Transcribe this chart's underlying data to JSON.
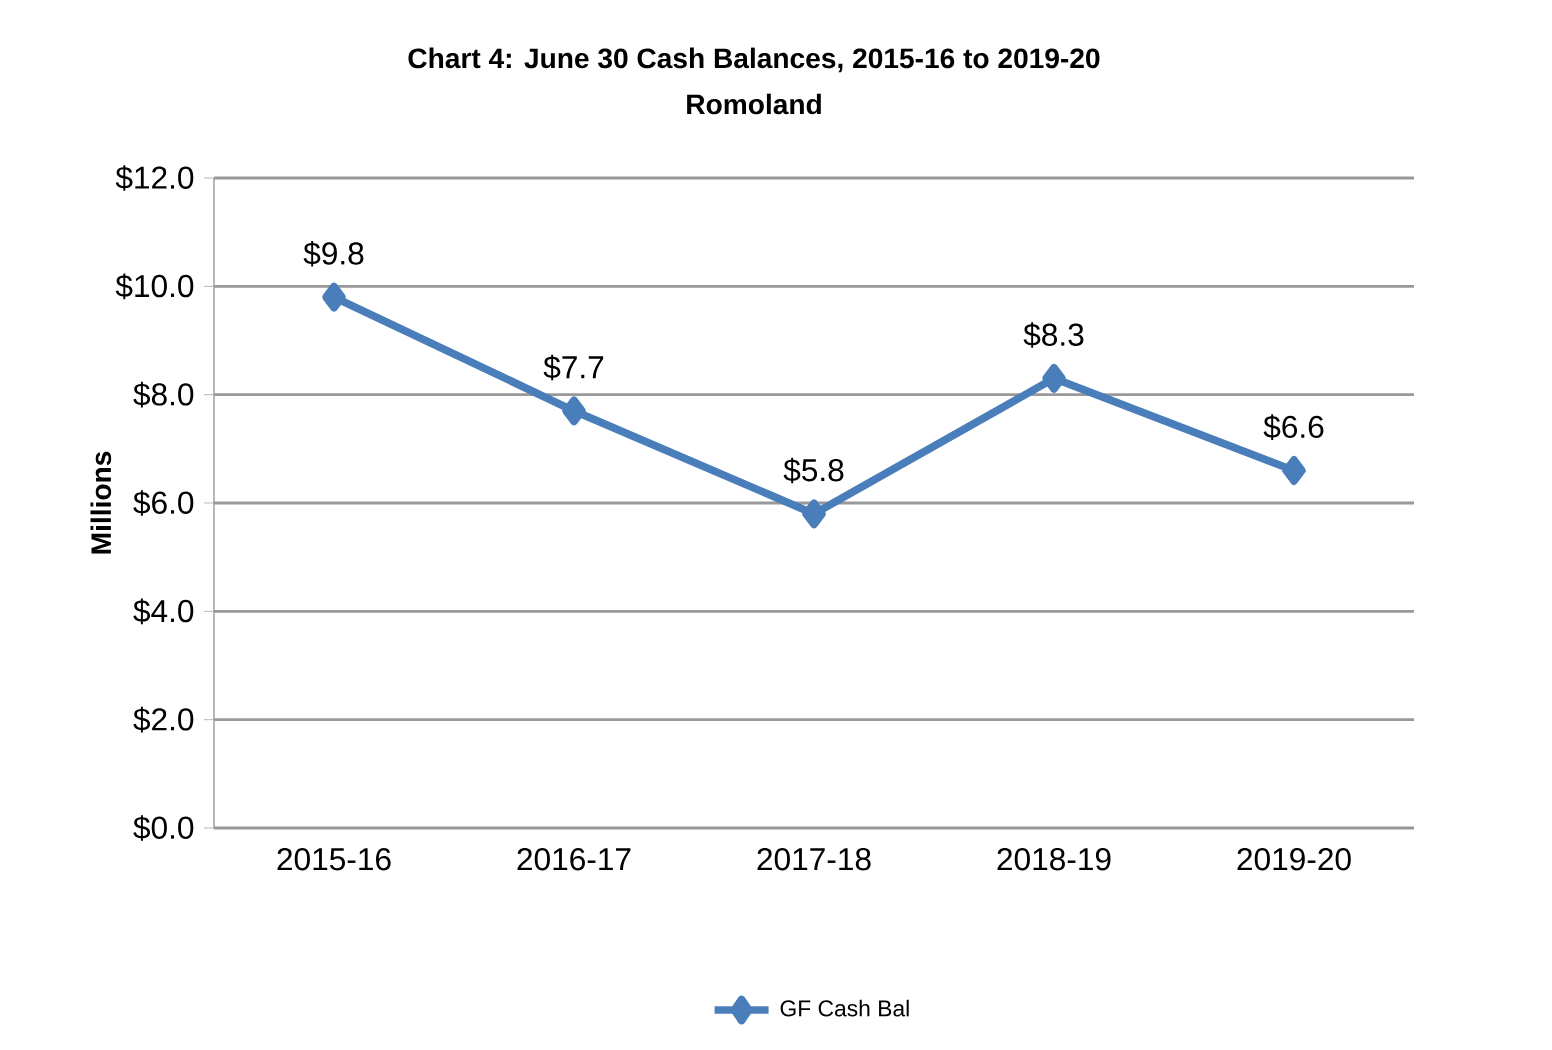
{
  "chart_data": {
    "type": "line",
    "title": "Chart 4: June 30 Cash Balances, 2015-16 to 2019-20",
    "subtitle": "Romoland",
    "ylabel": "Millions",
    "categories": [
      "2015-16",
      "2016-17",
      "2017-18",
      "2018-19",
      "2019-20"
    ],
    "series": [
      {
        "name": "GF Cash Bal",
        "color": "#4a7ebb",
        "values": [
          9.8,
          7.7,
          5.8,
          8.3,
          6.6
        ],
        "value_labels": [
          "$9.8",
          "$7.7",
          "$5.8",
          "$8.3",
          "$6.6"
        ]
      }
    ],
    "ylim": [
      0,
      12
    ],
    "yticks": [
      {
        "value": 0,
        "label": "$0.0"
      },
      {
        "value": 2,
        "label": "$2.0"
      },
      {
        "value": 4,
        "label": "$4.0"
      },
      {
        "value": 6,
        "label": "$6.0"
      },
      {
        "value": 8,
        "label": "$8.0"
      },
      {
        "value": 10,
        "label": "$10.0"
      },
      {
        "value": 12,
        "label": "$12.0"
      }
    ],
    "grid": "y",
    "legend": "bottom",
    "marker": "diamond",
    "line_style": "solid"
  }
}
